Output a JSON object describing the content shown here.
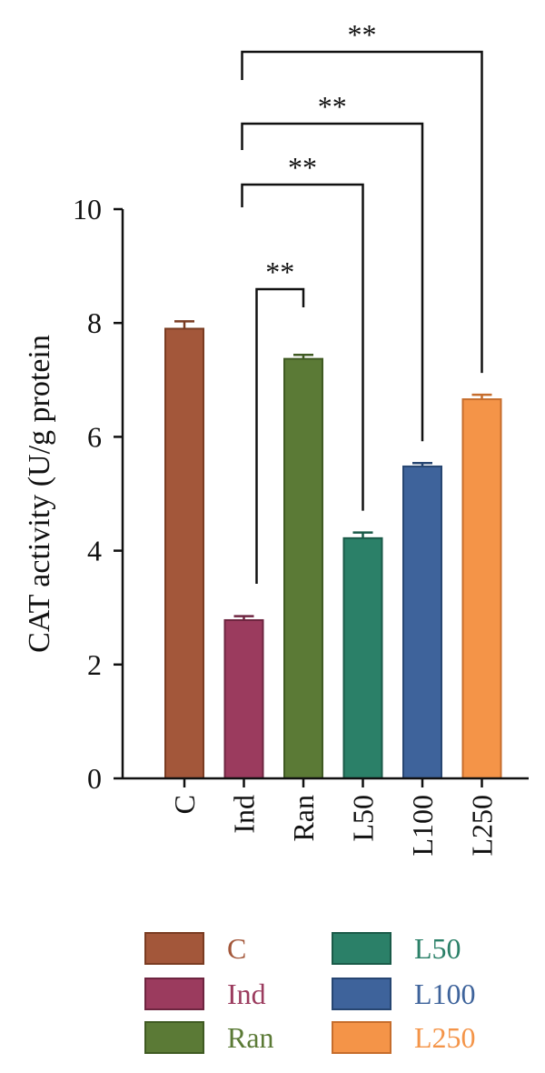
{
  "chart_data": {
    "type": "bar",
    "ylabel": "CAT activity (U/g protein",
    "ylim": [
      0,
      10
    ],
    "yticks": [
      "0",
      "2",
      "4",
      "6",
      "8",
      "10"
    ],
    "categories": [
      "C",
      "Ind",
      "Ran",
      "L50",
      "L100",
      "L250"
    ],
    "values": [
      7.9,
      2.78,
      7.37,
      4.22,
      5.48,
      6.66
    ],
    "errors": [
      0.13,
      0.07,
      0.07,
      0.1,
      0.06,
      0.08
    ],
    "fill_colors": [
      "#a3573a",
      "#9b3b5e",
      "#5b7a36",
      "#2b8068",
      "#3e639b",
      "#f49448"
    ],
    "edge_colors": [
      "#7a3c22",
      "#6e2540",
      "#3f5a22",
      "#1a5a48",
      "#274672",
      "#c66d2c"
    ],
    "significance": [
      {
        "from": "Ind",
        "to": "Ran",
        "label": "**"
      },
      {
        "from": "Ind",
        "to": "L50",
        "label": "**"
      },
      {
        "from": "Ind",
        "to": "L100",
        "label": "**"
      },
      {
        "from": "Ind",
        "to": "L250",
        "label": "**"
      }
    ],
    "legend": {
      "placement": "bottom",
      "entries": [
        "C",
        "Ind",
        "Ran",
        "L50",
        "L100",
        "L250"
      ]
    }
  }
}
